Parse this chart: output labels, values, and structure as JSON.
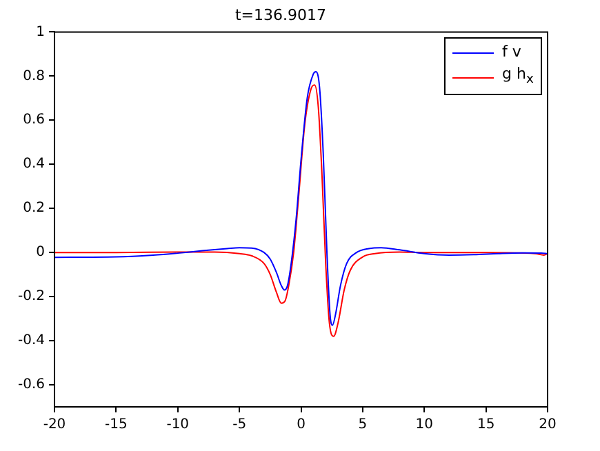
{
  "chart_data": {
    "type": "line",
    "title": "t=136.9017",
    "xlim": [
      -20,
      20
    ],
    "xticks": [
      -20,
      -15,
      -10,
      -5,
      0,
      5,
      10,
      15,
      20
    ],
    "ylim": [
      -0.7,
      1
    ],
    "yticks": [
      -0.6,
      -0.4,
      -0.2,
      0,
      0.2,
      0.4,
      0.6,
      0.8,
      1
    ],
    "grid": false,
    "legend": "top right",
    "marker": "none",
    "line_style": "solid",
    "series": [
      {
        "name": "f v",
        "color": "#0000ff",
        "x": [
          -20,
          -15,
          -12,
          -10,
          -8,
          -6,
          -5,
          -4,
          -3,
          -2.5,
          -2,
          -1.6,
          -1.35,
          -1.1,
          -0.8,
          -0.4,
          0,
          0.5,
          1,
          1.2,
          1.5,
          1.8,
          2.1,
          2.35,
          2.55,
          2.8,
          3.2,
          3.7,
          4.5,
          5.5,
          6.5,
          8,
          10,
          12,
          14,
          16,
          18,
          19.5,
          20
        ],
        "values": [
          -0.022,
          -0.02,
          -0.012,
          -0.003,
          0.008,
          0.018,
          0.022,
          0.02,
          0,
          -0.03,
          -0.09,
          -0.15,
          -0.17,
          -0.15,
          -0.05,
          0.15,
          0.42,
          0.7,
          0.81,
          0.82,
          0.75,
          0.45,
          0,
          -0.28,
          -0.33,
          -0.28,
          -0.15,
          -0.05,
          0,
          0.018,
          0.022,
          0.012,
          -0.005,
          -0.012,
          -0.01,
          -0.005,
          -0.002,
          -0.003,
          -0.005
        ]
      },
      {
        "name": "g h$_{x}$",
        "color": "#ff0000",
        "x": [
          -20,
          -15,
          -10,
          -7,
          -5,
          -4,
          -3,
          -2.5,
          -2,
          -1.6,
          -1.3,
          -1,
          -0.6,
          -0.2,
          0.3,
          0.8,
          1.1,
          1.4,
          1.7,
          2,
          2.3,
          2.65,
          3,
          3.5,
          4,
          5,
          6,
          8,
          10,
          15,
          19,
          19.7,
          20
        ],
        "values": [
          0,
          0,
          0.002,
          0.002,
          -0.005,
          -0.015,
          -0.05,
          -0.1,
          -0.18,
          -0.23,
          -0.22,
          -0.15,
          0,
          0.25,
          0.58,
          0.74,
          0.76,
          0.66,
          0.35,
          -0.05,
          -0.32,
          -0.38,
          -0.32,
          -0.17,
          -0.08,
          -0.02,
          -0.005,
          0.002,
          0,
          0,
          -0.005,
          -0.012,
          -0.005
        ]
      }
    ]
  }
}
